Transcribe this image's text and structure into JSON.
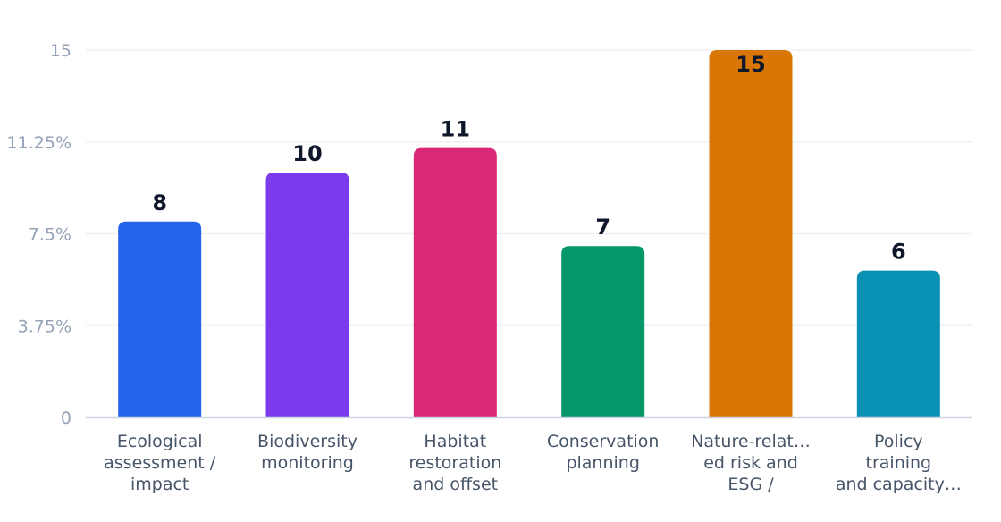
{
  "chart_data": {
    "type": "bar",
    "categories": [
      [
        "Ecological",
        "assessment /",
        "impact"
      ],
      [
        "Biodiversity",
        "monitoring"
      ],
      [
        "Habitat",
        "restoration",
        "and offset"
      ],
      [
        "Conservation",
        "planning"
      ],
      [
        "Nature-relat…",
        "ed risk and",
        "ESG /"
      ],
      [
        "Policy",
        "training",
        "and capacity…"
      ]
    ],
    "values": [
      8,
      10,
      11,
      7,
      15,
      6
    ],
    "value_labels": [
      "8",
      "10",
      "11",
      "7",
      "15",
      "6"
    ],
    "colors": [
      "#2563eb",
      "#7c3aed",
      "#db2777",
      "#059669",
      "#d97706",
      "#0891b2"
    ],
    "ylim": [
      0,
      15
    ],
    "yticks": [
      0,
      3.75,
      7.5,
      11.25,
      15
    ],
    "ytick_labels": [
      "0",
      "3.75%",
      "7.5%",
      "11.25%",
      "15"
    ],
    "grid": true,
    "title": "",
    "xlabel": "",
    "ylabel": ""
  }
}
